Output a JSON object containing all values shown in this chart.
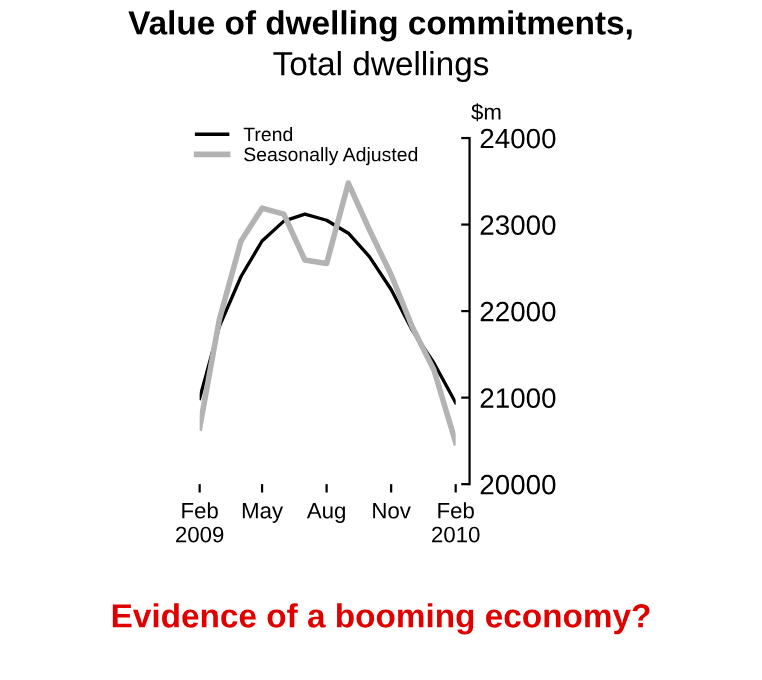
{
  "chart_data": {
    "type": "line",
    "title": "Value of dwelling commitments,",
    "subtitle": "Total dwellings",
    "ylabel": "$m",
    "x": [
      "2009-02",
      "2009-03",
      "2009-04",
      "2009-05",
      "2009-06",
      "2009-07",
      "2009-08",
      "2009-09",
      "2009-10",
      "2009-11",
      "2009-12",
      "2010-01",
      "2010-02"
    ],
    "series": [
      {
        "name": "Trend",
        "color": "#000000",
        "values": [
          20990,
          21820,
          22400,
          22810,
          23040,
          23120,
          23050,
          22900,
          22630,
          22250,
          21780,
          21400,
          20940
        ]
      },
      {
        "name": "Seasonally Adjusted",
        "color": "#b3b3b3",
        "values": [
          20650,
          21900,
          22810,
          23190,
          23120,
          22590,
          22550,
          23480,
          22940,
          22420,
          21820,
          21320,
          20480
        ]
      }
    ],
    "xlim": [
      "2009-02",
      "2010-02"
    ],
    "xticks": [
      {
        "value": "2009-02",
        "label": "Feb\n2009"
      },
      {
        "value": "2009-05",
        "label": "May"
      },
      {
        "value": "2009-08",
        "label": "Aug"
      },
      {
        "value": "2009-11",
        "label": "Nov"
      },
      {
        "value": "2010-02",
        "label": "Feb\n2010"
      }
    ],
    "ylim": [
      20000,
      24000
    ],
    "yticks": [
      20000,
      21000,
      22000,
      23000,
      24000
    ],
    "grid": false,
    "legend": "top left",
    "marker": "none",
    "line_style": "solid",
    "annotations": [
      "Evidence of a booming economy?"
    ]
  }
}
